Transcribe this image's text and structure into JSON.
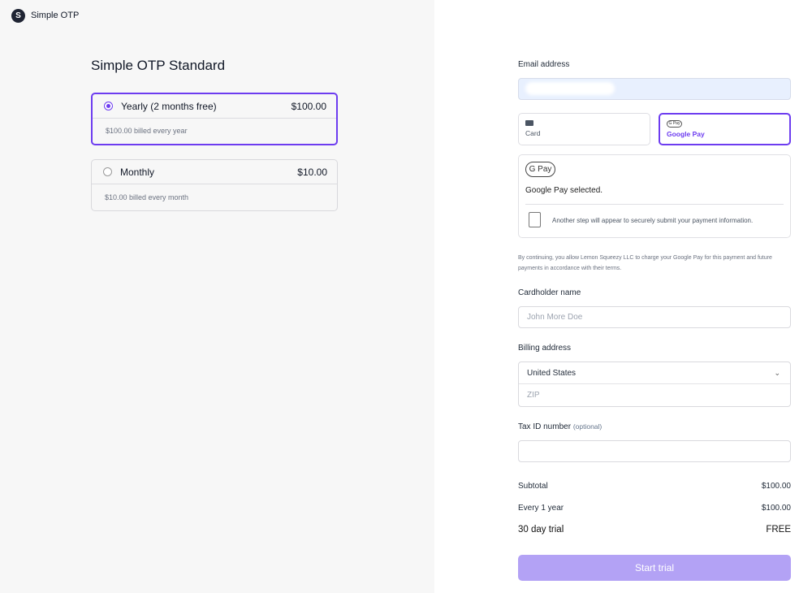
{
  "brand": {
    "name": "Simple OTP",
    "logo_letter": "S"
  },
  "product": {
    "title": "Simple OTP Standard"
  },
  "plans": [
    {
      "name": "Yearly (2 months free)",
      "price": "$100.00",
      "billing": "$100.00 billed every year",
      "selected": true
    },
    {
      "name": "Monthly",
      "price": "$10.00",
      "billing": "$10.00 billed every month",
      "selected": false
    }
  ],
  "form": {
    "email_label": "Email address",
    "email_value": "",
    "payment_methods": [
      {
        "label": "Card",
        "icon": "credit-card-icon"
      },
      {
        "label": "Google Pay",
        "icon": "google-pay-icon",
        "selected": true
      }
    ],
    "gpay_badge": "G Pay",
    "gpay_selected": "Google Pay selected.",
    "gpay_info": "Another step will appear to securely submit your payment information.",
    "terms": "By continuing, you allow Lemon Squeezy LLC to charge your Google Pay for this payment and future payments in accordance with their terms.",
    "cardholder_label": "Cardholder name",
    "cardholder_placeholder": "John More Doe",
    "billing_label": "Billing address",
    "country": "United States",
    "zip_placeholder": "ZIP",
    "tax_label": "Tax ID number",
    "tax_optional": "(optional)"
  },
  "summary": {
    "subtotal_label": "Subtotal",
    "subtotal": "$100.00",
    "recurring_label": "Every 1 year",
    "recurring": "$100.00",
    "trial_label": "30 day trial",
    "trial": "FREE"
  },
  "submit_label": "Start trial",
  "colors": {
    "accent": "#6d3cf0",
    "button": "#b3a2f5"
  }
}
